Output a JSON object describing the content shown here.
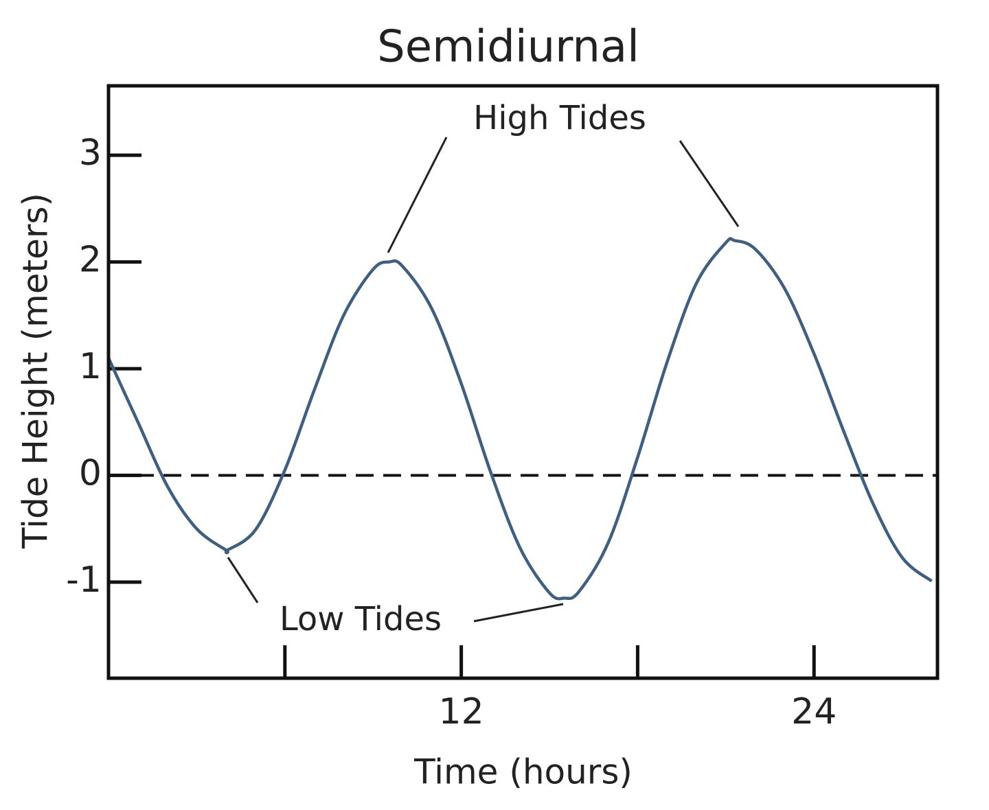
{
  "chart_data": {
    "type": "line",
    "title": "Semidiurnal",
    "x_label": "Time (hours)",
    "y_label": "Tide Height (meters)",
    "x": [
      0,
      1,
      2,
      3,
      4,
      4.05,
      5,
      6,
      7,
      8,
      9,
      9.55,
      10,
      11,
      12,
      13,
      14,
      15,
      15.5,
      16,
      17,
      18,
      19,
      20,
      21,
      21.3,
      22,
      23,
      24,
      25,
      26,
      27,
      28
    ],
    "series": [
      {
        "name": "Tide Height",
        "color": "#3d5f82",
        "values": [
          1.1,
          0.5,
          -0.1,
          -0.5,
          -0.7,
          -0.7,
          -0.51,
          0.05,
          0.8,
          1.5,
          1.93,
          2.0,
          1.96,
          1.56,
          0.86,
          0.03,
          -0.68,
          -1.1,
          -1.15,
          -1.09,
          -0.63,
          0.17,
          1.06,
          1.8,
          2.18,
          2.2,
          2.12,
          1.75,
          1.14,
          0.42,
          -0.26,
          -0.77,
          -0.99
        ]
      }
    ],
    "xlim": [
      0,
      28.2
    ],
    "xticks": [
      12,
      24
    ],
    "xminorticks": [
      6,
      18
    ],
    "ylim": [
      -1.9,
      3.65
    ],
    "yticks": [
      -1,
      0,
      1,
      2,
      3
    ],
    "zero_line": true,
    "annotations": [
      {
        "text": "High Tides"
      },
      {
        "text": "Low Tides"
      }
    ]
  }
}
